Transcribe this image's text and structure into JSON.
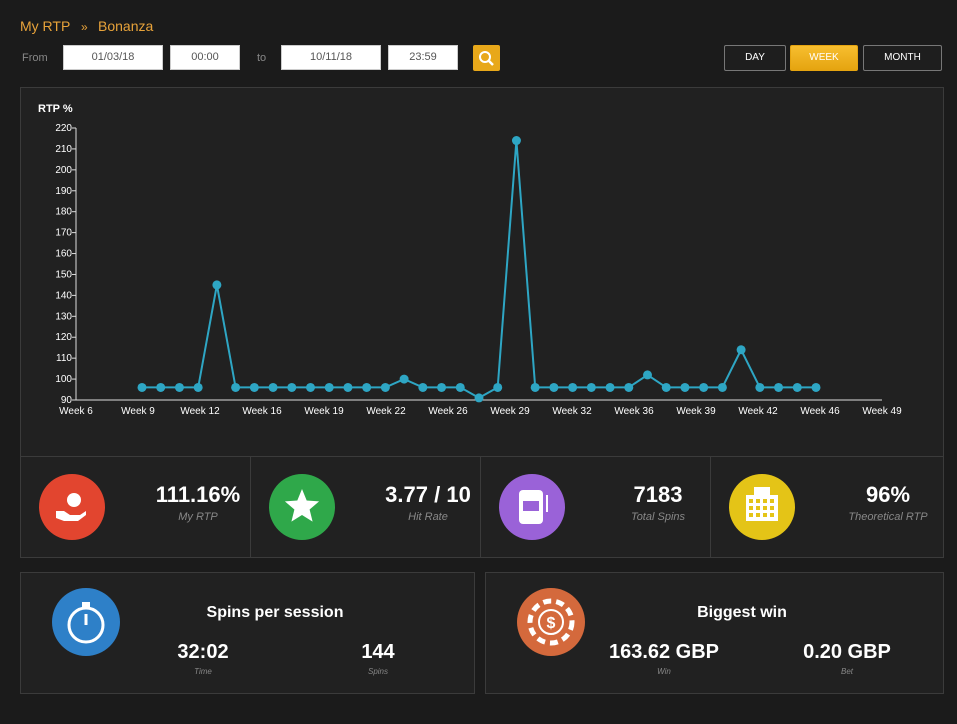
{
  "breadcrumb": {
    "root": "My RTP",
    "separator": "»",
    "current": "Bonanza"
  },
  "filters": {
    "from_label": "From",
    "from_date": "01/03/18",
    "from_time": "00:00",
    "to_label": "to",
    "to_date": "10/11/18",
    "to_time": "23:59"
  },
  "periods": {
    "options": [
      "DAY",
      "WEEK",
      "MONTH"
    ],
    "active_index": 1
  },
  "chart_data": {
    "type": "line",
    "y_label": "RTP %",
    "x_labels": [
      "Week 6",
      "Week 9",
      "Week 12",
      "Week 16",
      "Week 19",
      "Week 22",
      "Week 26",
      "Week 29",
      "Week 32",
      "Week 36",
      "Week 39",
      "Week 42",
      "Week 46",
      "Week 49"
    ],
    "values": [
      96,
      96,
      96,
      96,
      145,
      96,
      96,
      96,
      96,
      96,
      96,
      96,
      96,
      96,
      100,
      96,
      96,
      96,
      91,
      96,
      214,
      96,
      96,
      96,
      96,
      96,
      96,
      102,
      96,
      96,
      96,
      96,
      114,
      96,
      96,
      96,
      96
    ],
    "color": "#2ea6c4",
    "ylim": [
      90,
      220
    ],
    "yticks": [
      90,
      100,
      110,
      120,
      130,
      140,
      150,
      160,
      170,
      180,
      190,
      200,
      210,
      220
    ]
  },
  "stats": [
    {
      "value": "111.16%",
      "label": "My RTP",
      "color": "#e2452f"
    },
    {
      "value": "3.77 / 10",
      "label": "Hit Rate",
      "color": "#2fa84a"
    },
    {
      "value": "7183",
      "label": "Total Spins",
      "color": "#9a62d8"
    },
    {
      "value": "96%",
      "label": "Theoretical RTP",
      "color": "#e4c417"
    }
  ],
  "sessions": {
    "title": "Spins per session",
    "color": "#2e80c8",
    "items": [
      {
        "value": "32:02",
        "label": "Time"
      },
      {
        "value": "144",
        "label": "Spins"
      }
    ]
  },
  "biggest_win": {
    "title": "Biggest win",
    "color": "#d4693c",
    "items": [
      {
        "value": "163.62 GBP",
        "label": "Win"
      },
      {
        "value": "0.20 GBP",
        "label": "Bet"
      }
    ]
  }
}
